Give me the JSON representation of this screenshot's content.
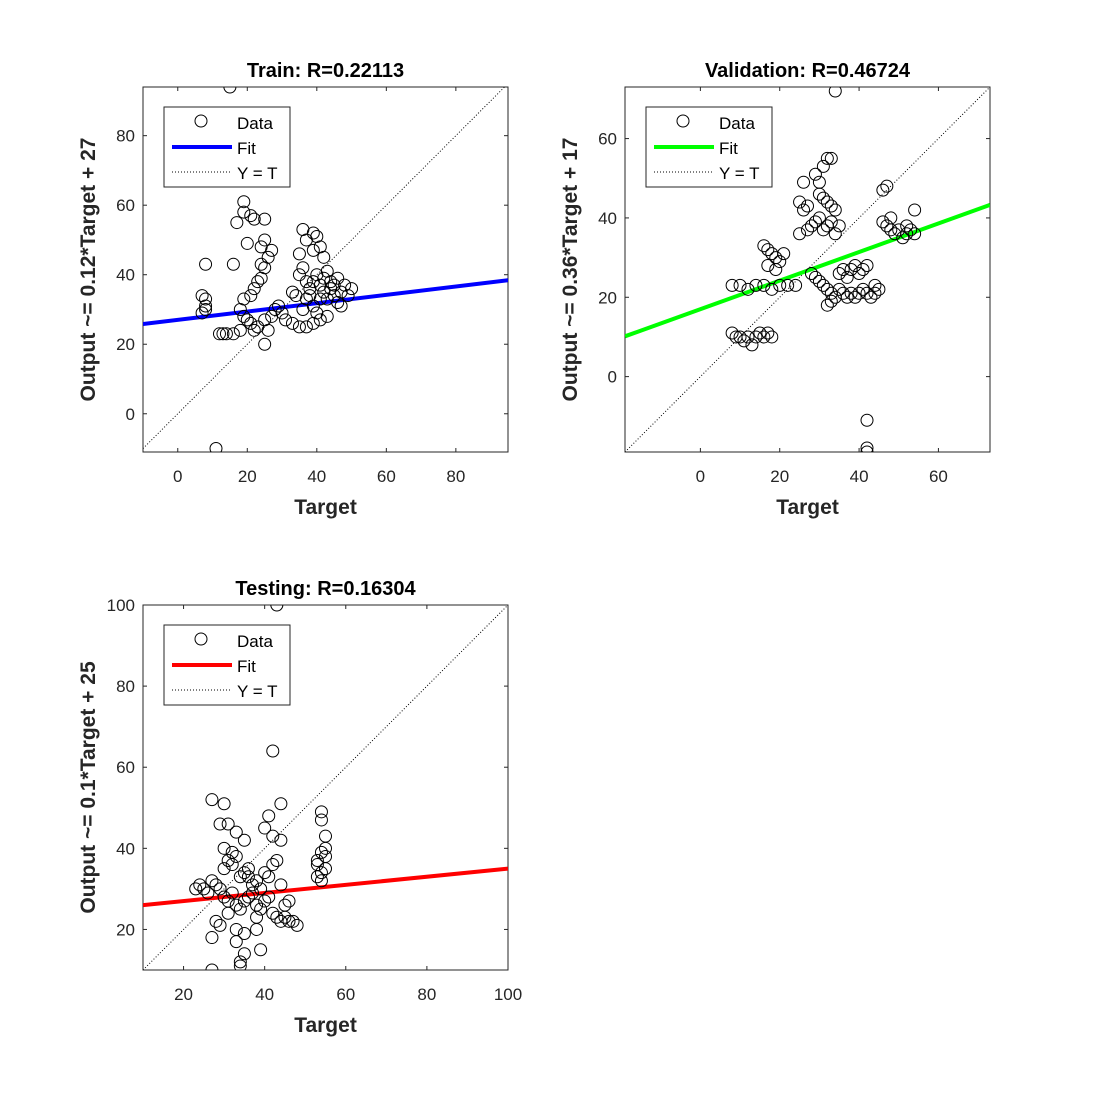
{
  "chart_data": [
    {
      "type": "scatter",
      "title": "Train: R=0.22113",
      "xlabel": "Target",
      "ylabel": "Output ~= 0.12*Target + 27",
      "xlim": [
        -10,
        95
      ],
      "ylim": [
        -11,
        94
      ],
      "xticks": [
        0,
        20,
        40,
        60,
        80
      ],
      "yticks": [
        0,
        20,
        40,
        60,
        80
      ],
      "fit": {
        "slope": 0.12,
        "intercept": 27,
        "color": "#0000ff"
      },
      "legend": {
        "placement": "top-left",
        "entries": [
          "Data",
          "Fit",
          "Y = T"
        ]
      },
      "grid": false,
      "series": [
        {
          "name": "Data",
          "points": [
            [
              15,
              94
            ],
            [
              11,
              -10
            ],
            [
              19,
              61
            ],
            [
              19,
              58
            ],
            [
              17,
              55
            ],
            [
              20,
              49
            ],
            [
              22,
              56
            ],
            [
              21,
              57
            ],
            [
              25,
              56
            ],
            [
              25,
              50
            ],
            [
              24,
              48
            ],
            [
              27,
              47
            ],
            [
              26,
              45
            ],
            [
              16,
              43
            ],
            [
              24,
              43
            ],
            [
              25,
              42
            ],
            [
              36,
              53
            ],
            [
              37,
              50
            ],
            [
              39,
              52
            ],
            [
              40,
              51
            ],
            [
              41,
              48
            ],
            [
              35,
              46
            ],
            [
              39,
              47
            ],
            [
              42,
              45
            ],
            [
              8,
              43
            ],
            [
              7,
              34
            ],
            [
              8,
              33
            ],
            [
              8,
              31
            ],
            [
              8,
              30
            ],
            [
              7,
              29
            ],
            [
              12,
              23
            ],
            [
              13,
              23
            ],
            [
              14,
              23
            ],
            [
              16,
              23
            ],
            [
              18,
              24
            ],
            [
              22,
              24
            ],
            [
              25,
              20
            ],
            [
              26,
              24
            ],
            [
              19,
              33
            ],
            [
              21,
              34
            ],
            [
              22,
              36
            ],
            [
              23,
              38
            ],
            [
              24,
              39
            ],
            [
              18,
              30
            ],
            [
              19,
              28
            ],
            [
              20,
              27
            ],
            [
              21,
              26
            ],
            [
              23,
              25
            ],
            [
              25,
              27
            ],
            [
              27,
              28
            ],
            [
              28,
              30
            ],
            [
              29,
              31
            ],
            [
              30,
              29
            ],
            [
              31,
              27
            ],
            [
              33,
              26
            ],
            [
              35,
              25
            ],
            [
              37,
              25
            ],
            [
              39,
              26
            ],
            [
              41,
              27
            ],
            [
              43,
              28
            ],
            [
              36,
              30
            ],
            [
              37,
              33
            ],
            [
              38,
              36
            ],
            [
              39,
              38
            ],
            [
              40,
              40
            ],
            [
              41,
              37
            ],
            [
              42,
              35
            ],
            [
              43,
              33
            ],
            [
              44,
              36
            ],
            [
              45,
              34
            ],
            [
              46,
              32
            ],
            [
              47,
              35
            ],
            [
              48,
              37
            ],
            [
              49,
              34
            ],
            [
              50,
              36
            ],
            [
              35,
              40
            ],
            [
              36,
              42
            ],
            [
              37,
              38
            ],
            [
              38,
              34
            ],
            [
              39,
              31
            ],
            [
              40,
              29
            ],
            [
              41,
              33
            ],
            [
              42,
              39
            ],
            [
              43,
              41
            ],
            [
              44,
              38
            ],
            [
              45,
              37
            ],
            [
              46,
              39
            ],
            [
              47,
              31
            ],
            [
              33,
              35
            ],
            [
              34,
              34
            ]
          ]
        }
      ]
    },
    {
      "type": "scatter",
      "title": "Validation: R=0.46724",
      "xlabel": "Target",
      "ylabel": "Output ~= 0.36*Target + 17",
      "xlim": [
        -19,
        73
      ],
      "ylim": [
        -19,
        73
      ],
      "xticks": [
        0,
        20,
        40,
        60
      ],
      "yticks": [
        0,
        20,
        40,
        60
      ],
      "fit": {
        "slope": 0.36,
        "intercept": 17,
        "color": "#00ff00"
      },
      "legend": {
        "placement": "top-left",
        "entries": [
          "Data",
          "Fit",
          "Y = T"
        ]
      },
      "grid": false,
      "series": [
        {
          "name": "Data",
          "points": [
            [
              34,
              72
            ],
            [
              42,
              -11
            ],
            [
              42,
              -18
            ],
            [
              42,
              -19
            ],
            [
              32,
              55
            ],
            [
              33,
              55
            ],
            [
              31,
              53
            ],
            [
              29,
              51
            ],
            [
              30,
              49
            ],
            [
              26,
              49
            ],
            [
              46,
              47
            ],
            [
              47,
              48
            ],
            [
              25,
              44
            ],
            [
              26,
              42
            ],
            [
              27,
              43
            ],
            [
              30,
              46
            ],
            [
              31,
              45
            ],
            [
              32,
              44
            ],
            [
              33,
              43
            ],
            [
              34,
              42
            ],
            [
              8,
              11
            ],
            [
              9,
              10
            ],
            [
              10,
              10
            ],
            [
              11,
              9
            ],
            [
              12,
              10
            ],
            [
              13,
              8
            ],
            [
              14,
              10
            ],
            [
              15,
              11
            ],
            [
              16,
              10
            ],
            [
              17,
              11
            ],
            [
              18,
              10
            ],
            [
              8,
              23
            ],
            [
              10,
              23
            ],
            [
              12,
              22
            ],
            [
              14,
              23
            ],
            [
              16,
              23
            ],
            [
              18,
              22
            ],
            [
              20,
              23
            ],
            [
              22,
              23
            ],
            [
              24,
              23
            ],
            [
              16,
              33
            ],
            [
              17,
              32
            ],
            [
              18,
              31
            ],
            [
              19,
              30
            ],
            [
              20,
              29
            ],
            [
              21,
              31
            ],
            [
              17,
              28
            ],
            [
              19,
              27
            ],
            [
              25,
              36
            ],
            [
              27,
              37
            ],
            [
              28,
              38
            ],
            [
              29,
              39
            ],
            [
              30,
              40
            ],
            [
              31,
              37
            ],
            [
              32,
              38
            ],
            [
              33,
              39
            ],
            [
              34,
              36
            ],
            [
              35,
              38
            ],
            [
              28,
              26
            ],
            [
              29,
              25
            ],
            [
              30,
              24
            ],
            [
              31,
              23
            ],
            [
              32,
              22
            ],
            [
              33,
              21
            ],
            [
              34,
              20
            ],
            [
              35,
              22
            ],
            [
              36,
              21
            ],
            [
              37,
              20
            ],
            [
              38,
              21
            ],
            [
              39,
              20
            ],
            [
              40,
              21
            ],
            [
              41,
              22
            ],
            [
              42,
              21
            ],
            [
              43,
              20
            ],
            [
              44,
              21
            ],
            [
              45,
              22
            ],
            [
              32,
              18
            ],
            [
              33,
              19
            ],
            [
              35,
              26
            ],
            [
              36,
              27
            ],
            [
              37,
              25
            ],
            [
              38,
              27
            ],
            [
              39,
              28
            ],
            [
              40,
              26
            ],
            [
              41,
              27
            ],
            [
              42,
              28
            ],
            [
              44,
              23
            ],
            [
              47,
              38
            ],
            [
              48,
              37
            ],
            [
              49,
              36
            ],
            [
              50,
              37
            ],
            [
              51,
              35
            ],
            [
              52,
              36
            ],
            [
              53,
              37
            ],
            [
              54,
              36
            ],
            [
              54,
              42
            ],
            [
              52,
              38
            ],
            [
              48,
              40
            ],
            [
              46,
              39
            ]
          ]
        }
      ]
    },
    {
      "type": "scatter",
      "title": "Testing: R=0.16304",
      "xlabel": "Target",
      "ylabel": "Output ~= 0.1*Target + 25",
      "xlim": [
        10,
        100
      ],
      "ylim": [
        10,
        100
      ],
      "xticks": [
        20,
        40,
        60,
        80,
        100
      ],
      "yticks": [
        20,
        40,
        60,
        80,
        100
      ],
      "fit": {
        "slope": 0.1,
        "intercept": 25,
        "color": "#ff0000"
      },
      "legend": {
        "placement": "top-left",
        "entries": [
          "Data",
          "Fit",
          "Y = T"
        ]
      },
      "grid": false,
      "series": [
        {
          "name": "Data",
          "points": [
            [
              43,
              100
            ],
            [
              42,
              64
            ],
            [
              27,
              52
            ],
            [
              30,
              51
            ],
            [
              44,
              51
            ],
            [
              31,
              46
            ],
            [
              29,
              46
            ],
            [
              33,
              44
            ],
            [
              35,
              42
            ],
            [
              40,
              45
            ],
            [
              41,
              48
            ],
            [
              42,
              43
            ],
            [
              44,
              42
            ],
            [
              54,
              49
            ],
            [
              54,
              47
            ],
            [
              55,
              43
            ],
            [
              27,
              10
            ],
            [
              34,
              11
            ],
            [
              34,
              12
            ],
            [
              35,
              14
            ],
            [
              39,
              15
            ],
            [
              33,
              17
            ],
            [
              35,
              19
            ],
            [
              38,
              20
            ],
            [
              27,
              18
            ],
            [
              28,
              22
            ],
            [
              23,
              30
            ],
            [
              24,
              31
            ],
            [
              25,
              30
            ],
            [
              26,
              29
            ],
            [
              27,
              32
            ],
            [
              28,
              31
            ],
            [
              29,
              30
            ],
            [
              30,
              28
            ],
            [
              31,
              27
            ],
            [
              32,
              29
            ],
            [
              33,
              26
            ],
            [
              34,
              25
            ],
            [
              35,
              27
            ],
            [
              36,
              28
            ],
            [
              37,
              29
            ],
            [
              38,
              26
            ],
            [
              39,
              25
            ],
            [
              40,
              27
            ],
            [
              41,
              28
            ],
            [
              42,
              24
            ],
            [
              43,
              23
            ],
            [
              44,
              22
            ],
            [
              45,
              23
            ],
            [
              46,
              22
            ],
            [
              47,
              22
            ],
            [
              48,
              21
            ],
            [
              30,
              35
            ],
            [
              31,
              37
            ],
            [
              32,
              36
            ],
            [
              33,
              38
            ],
            [
              34,
              33
            ],
            [
              35,
              34
            ],
            [
              36,
              35
            ],
            [
              37,
              31
            ],
            [
              38,
              32
            ],
            [
              39,
              30
            ],
            [
              40,
              34
            ],
            [
              41,
              33
            ],
            [
              42,
              36
            ],
            [
              43,
              37
            ],
            [
              44,
              31
            ],
            [
              30,
              40
            ],
            [
              32,
              39
            ],
            [
              36,
              33
            ],
            [
              53,
              36
            ],
            [
              54,
              34
            ],
            [
              55,
              35
            ],
            [
              54,
              32
            ],
            [
              53,
              33
            ],
            [
              55,
              38
            ],
            [
              54,
              39
            ],
            [
              53,
              37
            ],
            [
              55,
              40
            ],
            [
              31,
              24
            ],
            [
              29,
              21
            ],
            [
              33,
              20
            ],
            [
              45,
              26
            ],
            [
              46,
              27
            ],
            [
              38,
              23
            ]
          ]
        }
      ]
    }
  ]
}
